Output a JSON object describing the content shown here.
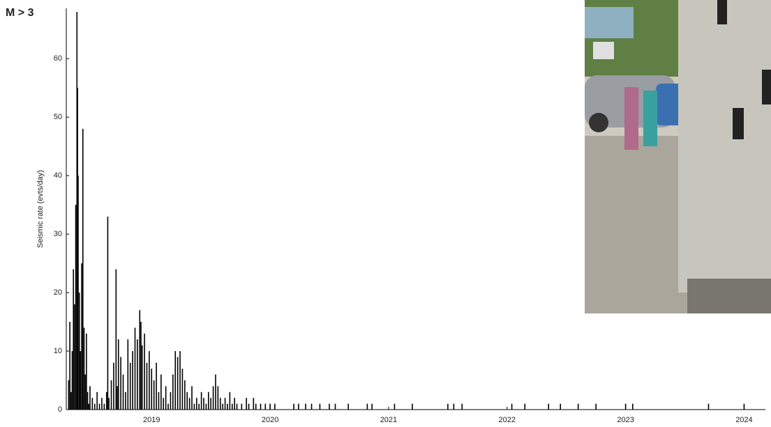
{
  "chart_data": {
    "type": "bar",
    "title": "M > 3",
    "y_label": "Seismic rate (evts/day)",
    "color": "#000000",
    "x": [
      2018.3,
      2018.31,
      2018.32,
      2018.33,
      2018.34,
      2018.35,
      2018.36,
      2018.37,
      2018.375,
      2018.38,
      2018.39,
      2018.4,
      2018.41,
      2018.42,
      2018.43,
      2018.44,
      2018.45,
      2018.46,
      2018.47,
      2018.48,
      2018.5,
      2018.52,
      2018.54,
      2018.56,
      2018.58,
      2018.6,
      2018.62,
      2018.63,
      2018.64,
      2018.66,
      2018.68,
      2018.7,
      2018.71,
      2018.72,
      2018.74,
      2018.76,
      2018.78,
      2018.8,
      2018.82,
      2018.84,
      2018.86,
      2018.88,
      2018.9,
      2018.91,
      2018.92,
      2018.94,
      2018.96,
      2018.98,
      2019.0,
      2019.02,
      2019.04,
      2019.06,
      2019.08,
      2019.1,
      2019.12,
      2019.14,
      2019.16,
      2019.18,
      2019.2,
      2019.22,
      2019.24,
      2019.26,
      2019.28,
      2019.3,
      2019.32,
      2019.34,
      2019.36,
      2019.38,
      2019.4,
      2019.42,
      2019.44,
      2019.46,
      2019.48,
      2019.5,
      2019.52,
      2019.54,
      2019.56,
      2019.58,
      2019.6,
      2019.62,
      2019.64,
      2019.66,
      2019.68,
      2019.7,
      2019.72,
      2019.76,
      2019.8,
      2019.82,
      2019.86,
      2019.88,
      2019.92,
      2019.96,
      2020.0,
      2020.04,
      2020.2,
      2020.24,
      2020.3,
      2020.35,
      2020.42,
      2020.5,
      2020.55,
      2020.66,
      2020.82,
      2020.86,
      2021.05,
      2021.2,
      2021.5,
      2021.55,
      2021.62,
      2022.04,
      2022.15,
      2022.35,
      2022.45,
      2022.6,
      2022.75,
      2023.0,
      2023.06,
      2023.7,
      2024.0
    ],
    "values": [
      5,
      15,
      3,
      10,
      24,
      18,
      35,
      68,
      55,
      40,
      20,
      10,
      25,
      48,
      14,
      6,
      13,
      3,
      1,
      4,
      2,
      1,
      3,
      1,
      2,
      1,
      3,
      33,
      2,
      5,
      8,
      24,
      4,
      12,
      9,
      6,
      3,
      12,
      8,
      10,
      14,
      12,
      17,
      15,
      11,
      13,
      8,
      10,
      7,
      5,
      8,
      3,
      6,
      2,
      4,
      1,
      3,
      6,
      10,
      9,
      10,
      7,
      5,
      3,
      2,
      4,
      1,
      2,
      1,
      3,
      2,
      1,
      3,
      2,
      4,
      6,
      4,
      2,
      1,
      2,
      1,
      3,
      1,
      2,
      1,
      1,
      2,
      1,
      2,
      1,
      1,
      1,
      1,
      1,
      1,
      1,
      1,
      1,
      1,
      1,
      1,
      1,
      1,
      1,
      1,
      1,
      1,
      1,
      1,
      1,
      1,
      1,
      1,
      1,
      1,
      1,
      1,
      1,
      1
    ],
    "xlim": [
      2018.28,
      2024.18
    ],
    "xticks": [
      2019,
      2020,
      2021,
      2022,
      2023,
      2024
    ],
    "ylim": [
      0,
      68.6
    ],
    "yticks": [
      0,
      10,
      20,
      30,
      40,
      50,
      60
    ]
  }
}
